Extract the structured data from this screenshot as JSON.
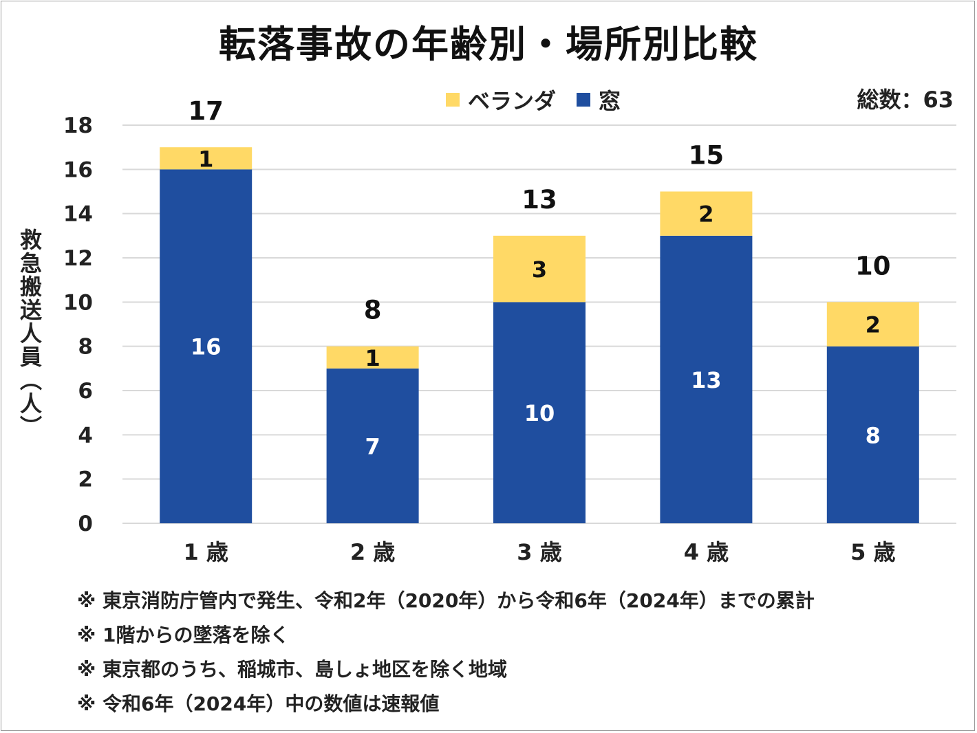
{
  "colors": {
    "window": "#1F4E9F",
    "veranda": "#FFD966",
    "grid": "#d9d9d9"
  },
  "chart_data": {
    "type": "bar",
    "stacked": true,
    "title": "転落事故の年齢別・場所別比較",
    "categories": [
      "1 歳",
      "2 歳",
      "3 歳",
      "4 歳",
      "5 歳"
    ],
    "series": [
      {
        "name": "窓",
        "values": [
          16,
          7,
          10,
          13,
          8
        ]
      },
      {
        "name": "ベランダ",
        "values": [
          1,
          1,
          3,
          2,
          2
        ]
      }
    ],
    "totals": [
      17,
      8,
      13,
      15,
      10
    ],
    "ylabel": "救急搬送人員（人）",
    "xlabel": "",
    "ylim": [
      0,
      18
    ],
    "yticks": [
      0,
      2,
      4,
      6,
      8,
      10,
      12,
      14,
      16,
      18
    ],
    "grid": true,
    "legend": "top-center",
    "annotation": "総数：63"
  },
  "notes": [
    "※ 東京消防庁管内で発生、令和2年（2020年）から令和6年（2024年）までの累計",
    "※ 1階からの墜落を除く",
    "※ 東京都のうち、稲城市、島しょ地区を除く地域",
    "※ 令和6年（2024年）中の数値は速報値"
  ]
}
